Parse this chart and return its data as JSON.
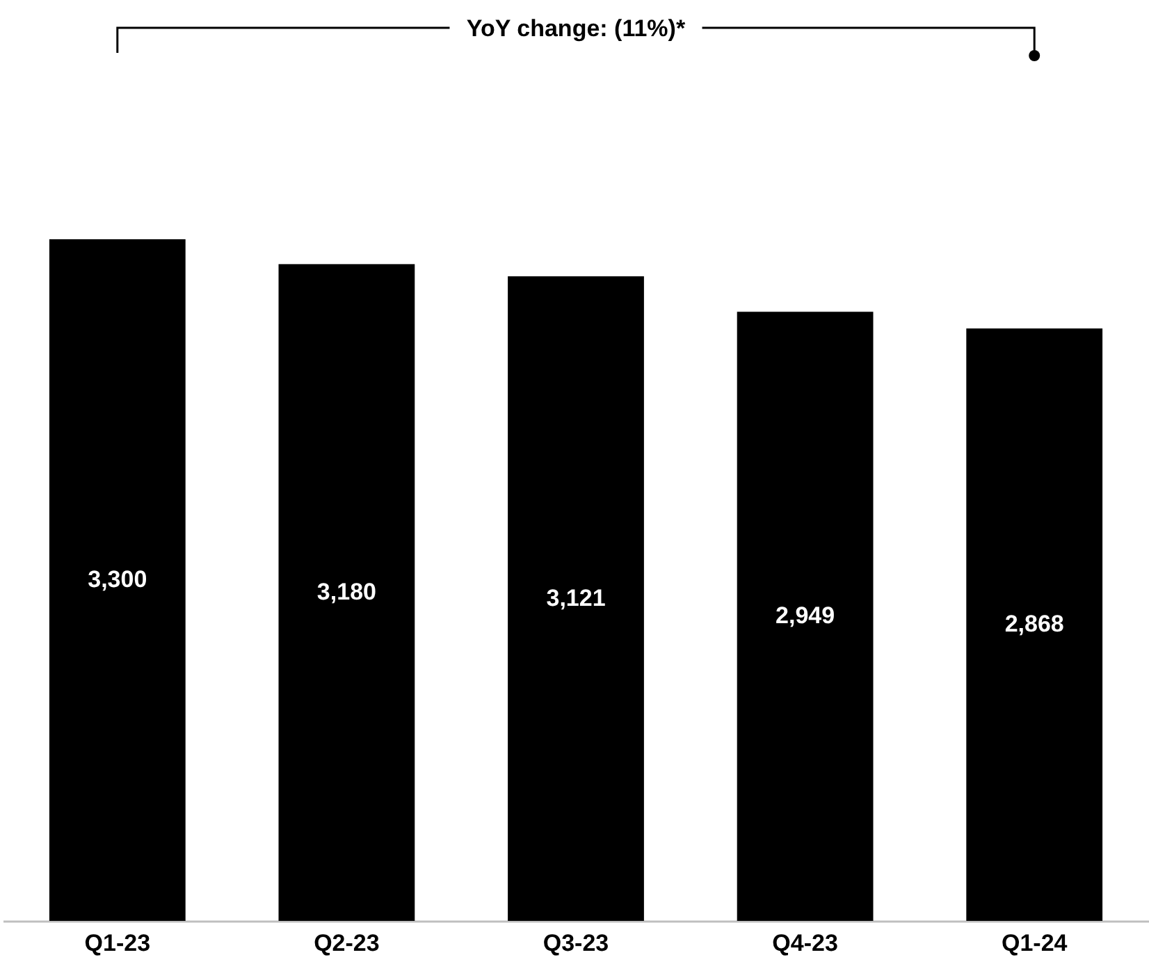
{
  "chart_data": {
    "type": "bar",
    "categories": [
      "Q1-23",
      "Q2-23",
      "Q3-23",
      "Q4-23",
      "Q1-24"
    ],
    "values": [
      3300,
      3180,
      3121,
      2949,
      2868
    ],
    "color": "#000000",
    "value_labels": [
      "3,300",
      "3,180",
      "3,121",
      "2,949",
      "2,868"
    ],
    "annotations": [
      "YoY change: (11%)*"
    ]
  }
}
